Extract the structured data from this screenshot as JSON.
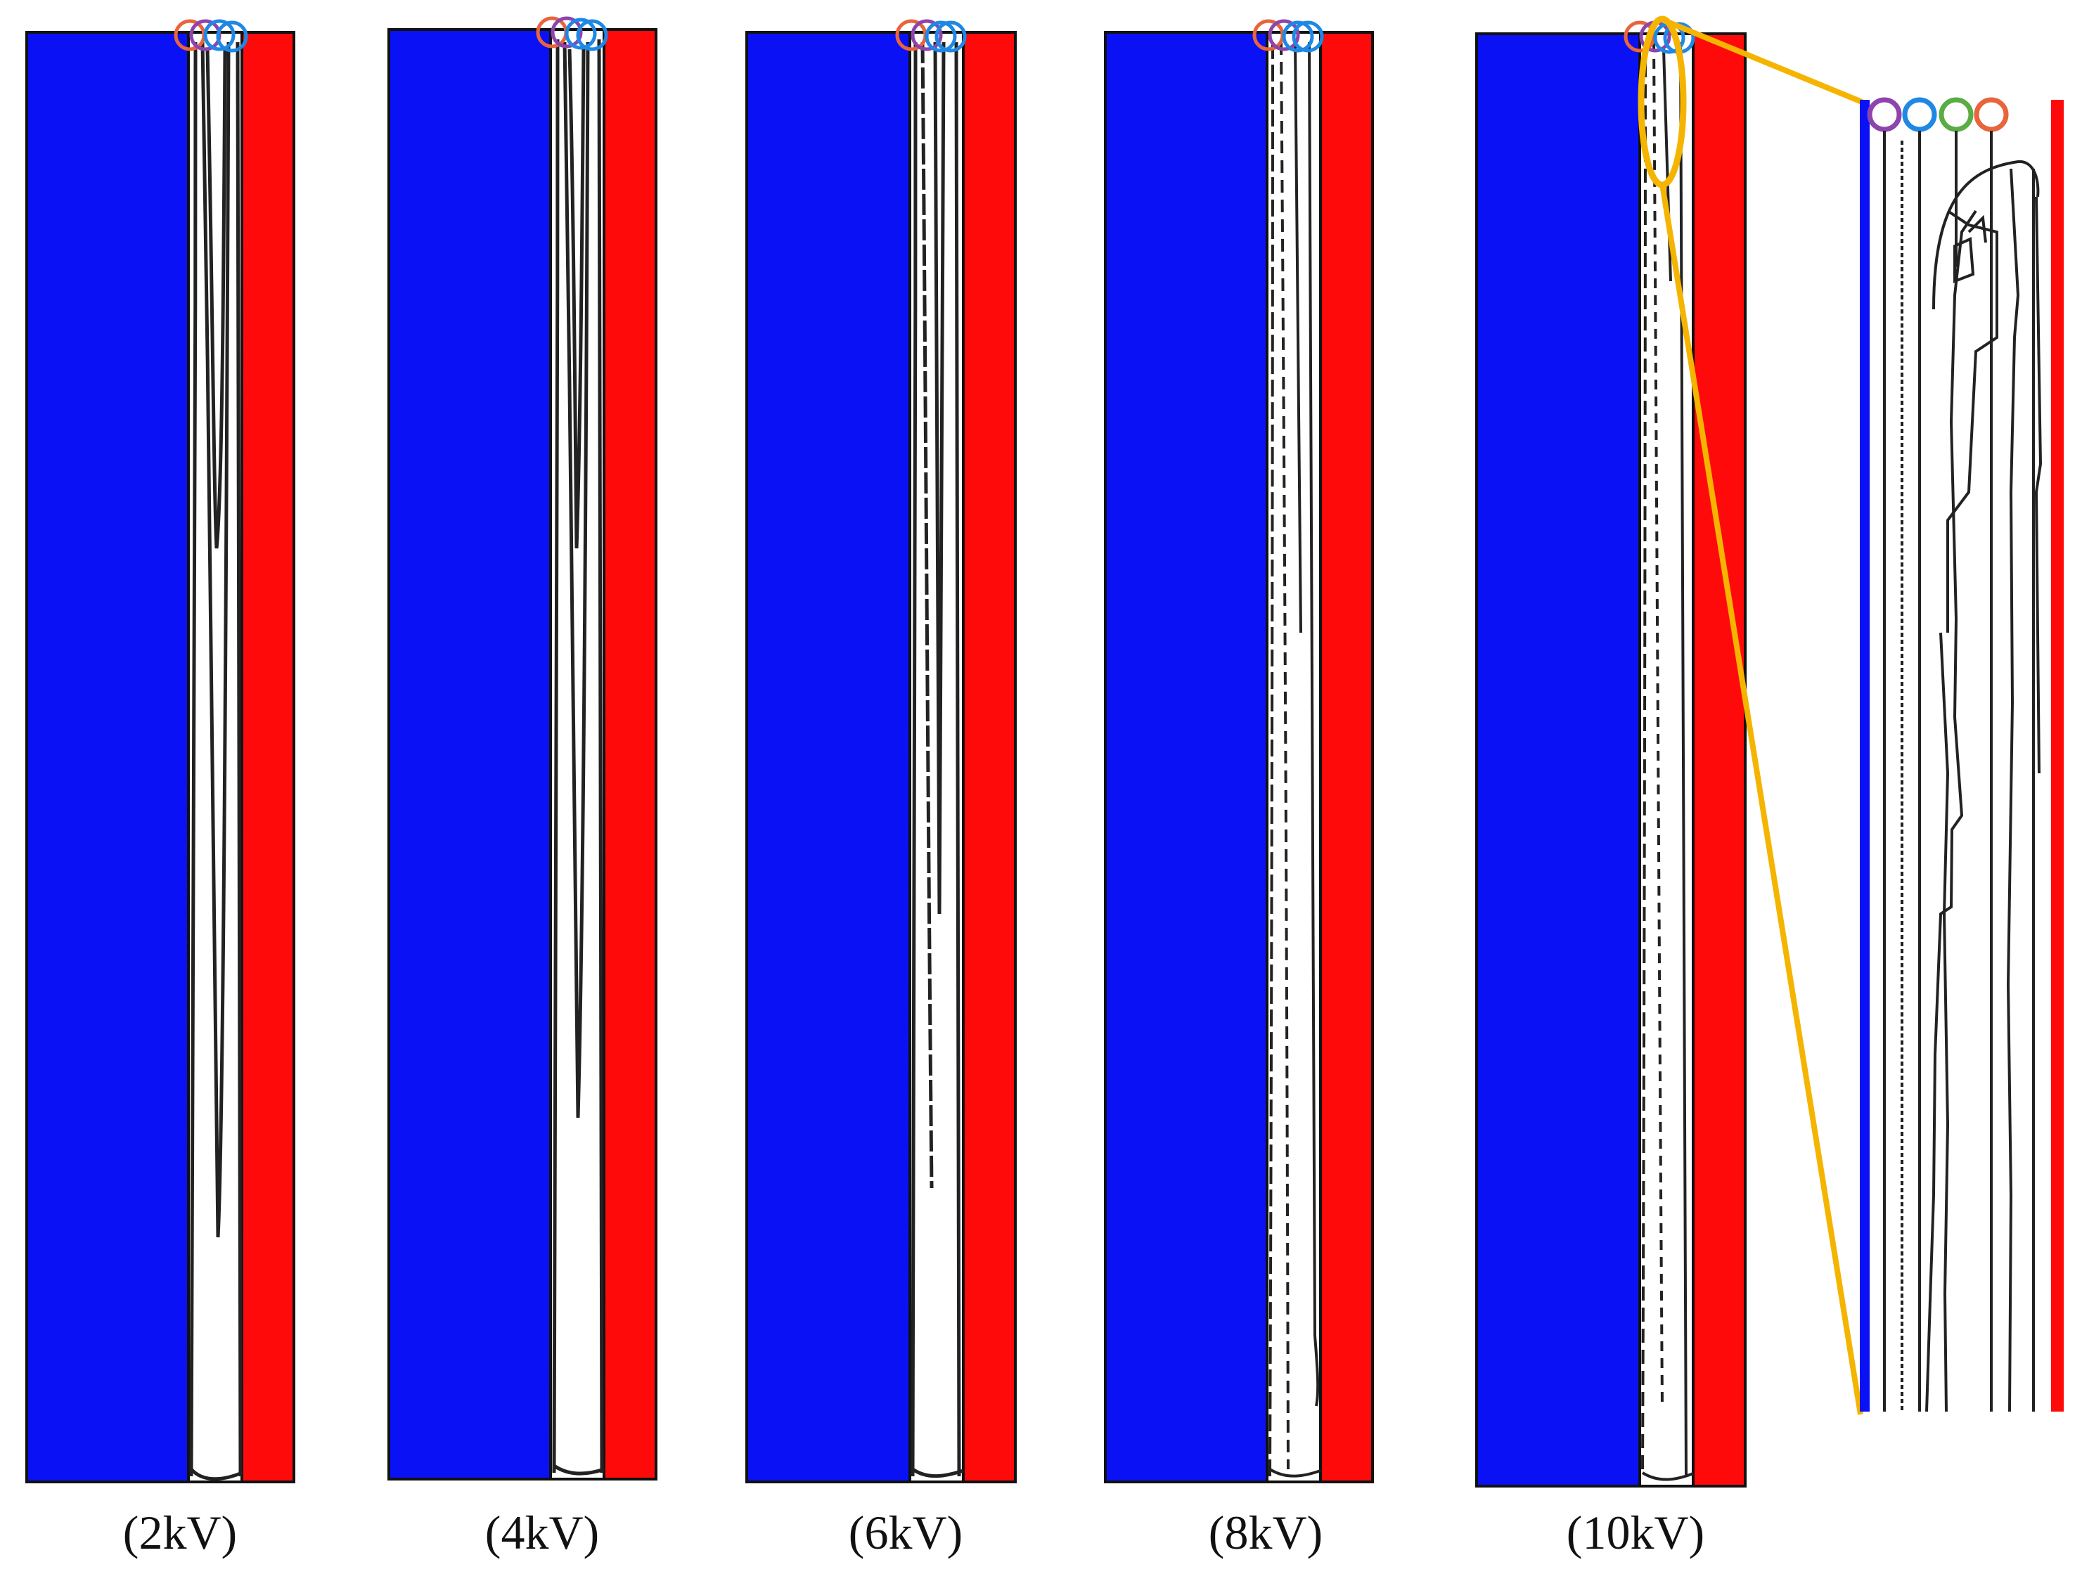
{
  "figure": {
    "panels": [
      {
        "id": "2kv",
        "caption": "(2kV)"
      },
      {
        "id": "4kv",
        "caption": "(4kV)"
      },
      {
        "id": "6kv",
        "caption": "(6kV)"
      },
      {
        "id": "8kv",
        "caption": "(8kV)"
      },
      {
        "id": "10kv",
        "caption": "(10kV)"
      }
    ],
    "colors": {
      "left_electrode": "#0a12f5",
      "right_electrode": "#ff0a0a",
      "streamline": "#222222",
      "highlight": "#f5b400",
      "marker_purple": "#8e44ad",
      "marker_blue": "#1e88e5",
      "marker_green": "#5aac44",
      "marker_orange": "#e8643c"
    }
  }
}
